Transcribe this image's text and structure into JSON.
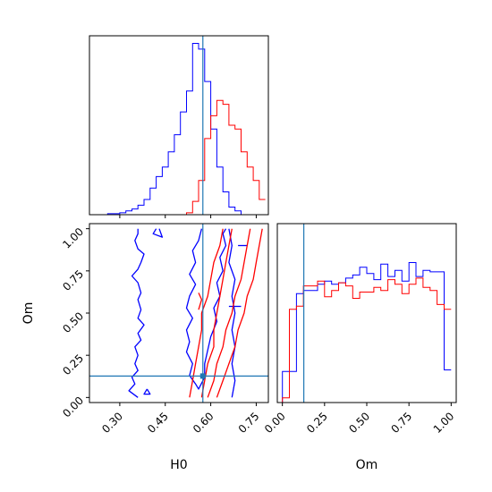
{
  "colors": {
    "series_a": "#0000ff",
    "series_b": "#ff0000",
    "truth": "#1f77b4",
    "axes": "#000000",
    "background": "#ffffff"
  },
  "chart_data": [
    {
      "type": "histogram",
      "panel": "H0 marginal",
      "xlim": [
        0.2,
        0.79
      ],
      "xticks": [
        0.3,
        0.45,
        0.6,
        0.75
      ],
      "xtick_labels": [
        "0.30",
        "0.45",
        "0.60",
        "0.75"
      ],
      "truth_x": 0.574,
      "bins": [
        0.2,
        0.22,
        0.24,
        0.26,
        0.28,
        0.3,
        0.32,
        0.34,
        0.36,
        0.38,
        0.4,
        0.42,
        0.44,
        0.46,
        0.48,
        0.5,
        0.52,
        0.54,
        0.56,
        0.58,
        0.6,
        0.62,
        0.64,
        0.66,
        0.68,
        0.7,
        0.72,
        0.74,
        0.76,
        0.78
      ],
      "series": [
        {
          "color_key": "series_a",
          "counts": [
            0,
            0,
            0,
            0.5,
            0.5,
            1,
            2,
            3,
            5,
            8,
            14,
            20,
            25,
            33,
            42,
            54,
            65,
            90,
            87,
            70,
            45,
            25,
            12,
            4,
            2,
            0,
            0,
            0,
            0
          ]
        },
        {
          "color_key": "series_b",
          "counts": [
            0,
            0,
            0,
            0,
            0,
            0,
            0,
            0,
            0,
            0,
            0,
            0,
            0,
            0,
            0,
            0,
            1,
            7,
            18,
            40,
            52,
            60,
            58,
            47,
            45,
            33,
            25,
            18,
            8
          ]
        }
      ]
    },
    {
      "type": "contour",
      "panel": "H0 vs Om",
      "xlabel": "H0",
      "ylabel": "Om",
      "xlim": [
        0.2,
        0.79
      ],
      "ylim": [
        -0.03,
        1.03
      ],
      "xticks": [
        0.3,
        0.45,
        0.6,
        0.75
      ],
      "xtick_labels": [
        "0.30",
        "0.45",
        "0.60",
        "0.75"
      ],
      "yticks": [
        0.0,
        0.25,
        0.5,
        0.75,
        1.0
      ],
      "ytick_labels": [
        "0.00",
        "0.25",
        "0.50",
        "0.75",
        "1.00"
      ],
      "truth_x": 0.574,
      "truth_y": 0.127,
      "series": [
        {
          "color_key": "series_a",
          "contours": [
            [
              [
                0.36,
                1.0
              ],
              [
                0.36,
                0.97
              ],
              [
                0.35,
                0.93
              ],
              [
                0.36,
                0.88
              ],
              [
                0.38,
                0.85
              ],
              [
                0.37,
                0.8
              ],
              [
                0.36,
                0.76
              ],
              [
                0.34,
                0.72
              ],
              [
                0.36,
                0.68
              ],
              [
                0.37,
                0.62
              ],
              [
                0.36,
                0.58
              ],
              [
                0.37,
                0.52
              ],
              [
                0.36,
                0.47
              ],
              [
                0.38,
                0.43
              ],
              [
                0.36,
                0.38
              ],
              [
                0.37,
                0.34
              ],
              [
                0.35,
                0.3
              ],
              [
                0.36,
                0.25
              ],
              [
                0.35,
                0.2
              ],
              [
                0.36,
                0.16
              ],
              [
                0.34,
                0.12
              ],
              [
                0.35,
                0.08
              ],
              [
                0.33,
                0.04
              ],
              [
                0.36,
                0.0
              ]
            ],
            [
              [
                0.42,
                1.0
              ],
              [
                0.41,
                0.97
              ],
              [
                0.44,
                0.95
              ],
              [
                0.43,
                1.0
              ]
            ],
            [
              [
                0.39,
                0.05
              ],
              [
                0.4,
                0.02
              ],
              [
                0.38,
                0.02
              ],
              [
                0.39,
                0.05
              ]
            ],
            [
              [
                0.57,
                1.0
              ],
              [
                0.56,
                0.93
              ],
              [
                0.54,
                0.87
              ],
              [
                0.55,
                0.8
              ],
              [
                0.53,
                0.73
              ],
              [
                0.55,
                0.67
              ],
              [
                0.53,
                0.6
              ],
              [
                0.52,
                0.53
              ],
              [
                0.54,
                0.47
              ],
              [
                0.52,
                0.4
              ],
              [
                0.53,
                0.33
              ],
              [
                0.52,
                0.27
              ],
              [
                0.54,
                0.2
              ],
              [
                0.53,
                0.13
              ],
              [
                0.55,
                0.08
              ],
              [
                0.56,
                0.05
              ],
              [
                0.58,
                0.12
              ],
              [
                0.58,
                0.2
              ],
              [
                0.59,
                0.28
              ],
              [
                0.6,
                0.36
              ],
              [
                0.62,
                0.45
              ],
              [
                0.61,
                0.53
              ],
              [
                0.63,
                0.6
              ],
              [
                0.62,
                0.68
              ],
              [
                0.64,
                0.75
              ],
              [
                0.63,
                0.83
              ],
              [
                0.65,
                0.9
              ],
              [
                0.64,
                0.97
              ],
              [
                0.65,
                1.0
              ]
            ],
            [
              [
                0.66,
                1.0
              ],
              [
                0.67,
                0.9
              ],
              [
                0.66,
                0.8
              ],
              [
                0.68,
                0.7
              ],
              [
                0.67,
                0.6
              ],
              [
                0.68,
                0.5
              ],
              [
                0.67,
                0.4
              ],
              [
                0.68,
                0.3
              ],
              [
                0.67,
                0.2
              ],
              [
                0.68,
                0.1
              ],
              [
                0.67,
                0.0
              ]
            ],
            [
              [
                0.66,
                0.54
              ],
              [
                0.7,
                0.54
              ]
            ],
            [
              [
                0.69,
                0.9
              ],
              [
                0.72,
                0.9
              ]
            ]
          ]
        },
        {
          "color_key": "series_b",
          "contours": [
            [
              [
                0.53,
                0.0
              ],
              [
                0.54,
                0.1
              ],
              [
                0.55,
                0.2
              ],
              [
                0.56,
                0.3
              ],
              [
                0.57,
                0.4
              ],
              [
                0.57,
                0.5
              ],
              [
                0.59,
                0.6
              ],
              [
                0.6,
                0.7
              ],
              [
                0.61,
                0.8
              ],
              [
                0.63,
                0.9
              ],
              [
                0.64,
                1.0
              ]
            ],
            [
              [
                0.57,
                0.0
              ],
              [
                0.58,
                0.1
              ],
              [
                0.59,
                0.2
              ],
              [
                0.61,
                0.3
              ],
              [
                0.61,
                0.4
              ],
              [
                0.62,
                0.5
              ],
              [
                0.63,
                0.6
              ],
              [
                0.64,
                0.7
              ],
              [
                0.65,
                0.8
              ],
              [
                0.66,
                0.9
              ],
              [
                0.67,
                1.0
              ]
            ],
            [
              [
                0.59,
                0.0
              ],
              [
                0.61,
                0.1
              ],
              [
                0.62,
                0.2
              ],
              [
                0.64,
                0.3
              ],
              [
                0.65,
                0.4
              ],
              [
                0.67,
                0.5
              ],
              [
                0.68,
                0.6
              ],
              [
                0.7,
                0.7
              ],
              [
                0.71,
                0.8
              ],
              [
                0.72,
                0.9
              ],
              [
                0.73,
                1.0
              ]
            ],
            [
              [
                0.62,
                0.0
              ],
              [
                0.64,
                0.1
              ],
              [
                0.66,
                0.2
              ],
              [
                0.68,
                0.3
              ],
              [
                0.69,
                0.4
              ],
              [
                0.71,
                0.5
              ],
              [
                0.72,
                0.6
              ],
              [
                0.74,
                0.7
              ],
              [
                0.75,
                0.8
              ],
              [
                0.76,
                0.9
              ],
              [
                0.77,
                1.0
              ]
            ],
            [
              [
                0.56,
                0.52
              ],
              [
                0.57,
                0.58
              ],
              [
                0.56,
                0.62
              ]
            ]
          ]
        }
      ]
    },
    {
      "type": "histogram",
      "panel": "Om marginal",
      "xlabel": "Om",
      "xlim": [
        -0.03,
        1.03
      ],
      "xticks": [
        0.0,
        0.25,
        0.5,
        0.75,
        1.0
      ],
      "xtick_labels": [
        "0.00",
        "0.25",
        "0.50",
        "0.75",
        "1.00"
      ],
      "truth_x": 0.127,
      "bins": [
        0.0,
        0.0417,
        0.0833,
        0.125,
        0.1667,
        0.2083,
        0.25,
        0.2917,
        0.3333,
        0.375,
        0.4167,
        0.4583,
        0.5,
        0.5417,
        0.5833,
        0.625,
        0.6667,
        0.7083,
        0.75,
        0.7917,
        0.8333,
        0.875,
        0.9167,
        0.9583,
        1.0
      ],
      "series": [
        {
          "color_key": "series_a",
          "counts": [
            20,
            20,
            70,
            72,
            72,
            76,
            78,
            76,
            77,
            80,
            82,
            87,
            83,
            79,
            89,
            81,
            85,
            78,
            90,
            81,
            85,
            84,
            84,
            21
          ]
        },
        {
          "color_key": "series_b",
          "counts": [
            3,
            60,
            62,
            75,
            75,
            78,
            68,
            72,
            77,
            75,
            67,
            71,
            71,
            74,
            72,
            79,
            76,
            70,
            76,
            80,
            74,
            72,
            63,
            60
          ]
        }
      ]
    }
  ]
}
